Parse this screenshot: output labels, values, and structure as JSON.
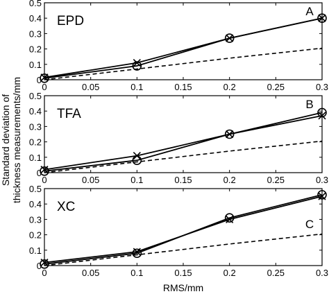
{
  "figure": {
    "ylabel_line1": "Standard deviation of",
    "ylabel_line2": "thickness measurements/mm",
    "xlabel": "RMS/mm"
  },
  "chart_data": [
    {
      "type": "line",
      "panel_label": "A",
      "title": "EPD",
      "x": [
        0,
        0.1,
        0.2,
        0.3
      ],
      "xlim": [
        0,
        0.3
      ],
      "ylim": [
        0,
        0.5
      ],
      "xticks": [
        "0",
        "0.05",
        "0.1",
        "0.15",
        "0.2",
        "0.25",
        "0.3"
      ],
      "yticks": [
        "0",
        "0.1",
        "0.2",
        "0.3",
        "0.4",
        "0.5"
      ],
      "grid": false,
      "series": [
        {
          "marker": "x",
          "style": "solid",
          "values": [
            0.015,
            0.11,
            0.27,
            0.4
          ]
        },
        {
          "marker": "o",
          "style": "solid",
          "values": [
            0.01,
            0.09,
            0.27,
            0.4
          ]
        },
        {
          "marker": "none",
          "style": "dashed",
          "values": [
            0,
            0.07,
            0.14,
            0.205
          ]
        }
      ]
    },
    {
      "type": "line",
      "panel_label": "B",
      "title": "TFA",
      "x": [
        0,
        0.1,
        0.2,
        0.3
      ],
      "xlim": [
        0,
        0.3
      ],
      "ylim": [
        0,
        0.5
      ],
      "xticks": [
        "0",
        "0.05",
        "0.1",
        "0.15",
        "0.2",
        "0.25",
        "0.3"
      ],
      "yticks": [
        "0",
        "0.1",
        "0.2",
        "0.3",
        "0.4",
        "0.5"
      ],
      "grid": false,
      "series": [
        {
          "marker": "x",
          "style": "solid",
          "values": [
            0.02,
            0.11,
            0.25,
            0.37
          ]
        },
        {
          "marker": "o",
          "style": "solid",
          "values": [
            0.01,
            0.08,
            0.25,
            0.39
          ]
        },
        {
          "marker": "none",
          "style": "dashed",
          "values": [
            0,
            0.07,
            0.14,
            0.205
          ]
        }
      ]
    },
    {
      "type": "line",
      "panel_label": "C",
      "title": "XC",
      "x": [
        0,
        0.1,
        0.2,
        0.3
      ],
      "xlim": [
        0,
        0.3
      ],
      "ylim": [
        0,
        0.5
      ],
      "xticks": [
        "0",
        "0.05",
        "0.1",
        "0.15",
        "0.2",
        "0.25",
        "0.3"
      ],
      "yticks": [
        "0",
        "0.1",
        "0.2",
        "0.3",
        "0.4",
        "0.5"
      ],
      "grid": false,
      "series": [
        {
          "marker": "x",
          "style": "solid",
          "values": [
            0.02,
            0.09,
            0.3,
            0.45
          ]
        },
        {
          "marker": "o",
          "style": "solid",
          "values": [
            0.01,
            0.08,
            0.31,
            0.46
          ]
        },
        {
          "marker": "none",
          "style": "dashed",
          "values": [
            0,
            0.07,
            0.14,
            0.205
          ]
        }
      ]
    }
  ]
}
